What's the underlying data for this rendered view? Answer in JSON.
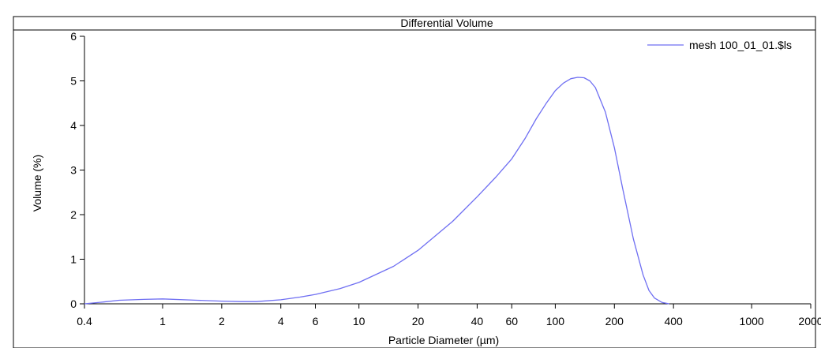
{
  "chart_data": {
    "type": "line",
    "title": "Differential Volume",
    "xlabel": "Particle Diameter (µm)",
    "ylabel": "Volume (%)",
    "x_scale": "log",
    "xlim": [
      0.4,
      2000
    ],
    "ylim": [
      0,
      6
    ],
    "x_ticks": [
      0.4,
      1,
      2,
      4,
      6,
      10,
      20,
      40,
      60,
      100,
      200,
      400,
      1000,
      2000
    ],
    "x_tick_labels": [
      "0.4",
      "1",
      "2",
      "4",
      "6",
      "10",
      "20",
      "40",
      "60",
      "100",
      "200",
      "400",
      "1000",
      "2000"
    ],
    "y_ticks": [
      0,
      1,
      2,
      3,
      4,
      5,
      6
    ],
    "y_tick_labels": [
      "0",
      "1",
      "2",
      "3",
      "4",
      "5",
      "6"
    ],
    "legend_position": "top-right",
    "series": [
      {
        "name": "mesh 100_01_01.$ls",
        "color": "#6f6ff2",
        "x": [
          0.4,
          0.5,
          0.6,
          0.8,
          1,
          1.5,
          2,
          2.5,
          3,
          4,
          5,
          6,
          8,
          10,
          15,
          20,
          30,
          40,
          50,
          60,
          70,
          80,
          90,
          100,
          110,
          120,
          130,
          140,
          150,
          160,
          180,
          200,
          220,
          250,
          280,
          300,
          320,
          350,
          380
        ],
        "y": [
          0.0,
          0.04,
          0.08,
          0.1,
          0.11,
          0.08,
          0.06,
          0.05,
          0.05,
          0.09,
          0.15,
          0.21,
          0.34,
          0.48,
          0.84,
          1.2,
          1.85,
          2.4,
          2.85,
          3.25,
          3.7,
          4.15,
          4.5,
          4.78,
          4.95,
          5.05,
          5.08,
          5.07,
          5.0,
          4.85,
          4.3,
          3.5,
          2.6,
          1.45,
          0.65,
          0.3,
          0.13,
          0.03,
          0.0
        ]
      }
    ]
  }
}
